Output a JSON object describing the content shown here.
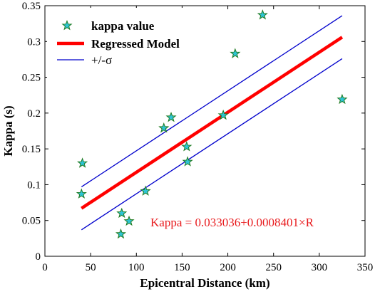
{
  "chart_data": {
    "type": "scatter",
    "xlabel": "Epicentral Distance (km)",
    "ylabel": "Kappa (s)",
    "xlim": [
      0,
      350
    ],
    "ylim": [
      0,
      0.35
    ],
    "xticks": [
      0,
      50,
      100,
      150,
      200,
      250,
      300,
      350
    ],
    "yticks": [
      0,
      0.05,
      0.1,
      0.15,
      0.2,
      0.25,
      0.3,
      0.35
    ],
    "xtick_labels": [
      "0",
      "50",
      "100",
      "150",
      "200",
      "250",
      "300",
      "350"
    ],
    "ytick_labels": [
      "0",
      "0.05",
      "0.1",
      "0.15",
      "0.2",
      "0.25",
      "0.3",
      "0.35"
    ],
    "grid": false,
    "legend_position": "top-left",
    "series": [
      {
        "name": "kappa value",
        "kind": "scatter",
        "marker": "star",
        "marker_fill": "#2ec4d6",
        "marker_edge": "#1f7a1f",
        "x": [
          40,
          41,
          83,
          84,
          92,
          110,
          130,
          138,
          155,
          156,
          195,
          208,
          238,
          325
        ],
        "y": [
          0.087,
          0.13,
          0.031,
          0.06,
          0.049,
          0.091,
          0.179,
          0.194,
          0.153,
          0.132,
          0.197,
          0.283,
          0.337,
          0.219
        ]
      },
      {
        "name": "Regressed Model",
        "kind": "line",
        "color": "#ff0000",
        "x": [
          40,
          325
        ],
        "y": [
          0.067,
          0.306
        ]
      },
      {
        "name": "+/-σ",
        "kind": "line",
        "color": "#0000cc",
        "x": [
          40,
          325
        ],
        "y_upper": [
          0.097,
          0.336
        ],
        "y_lower": [
          0.037,
          0.276
        ]
      }
    ],
    "annotation": "Kappa = 0.033036+0.0008401×R"
  }
}
